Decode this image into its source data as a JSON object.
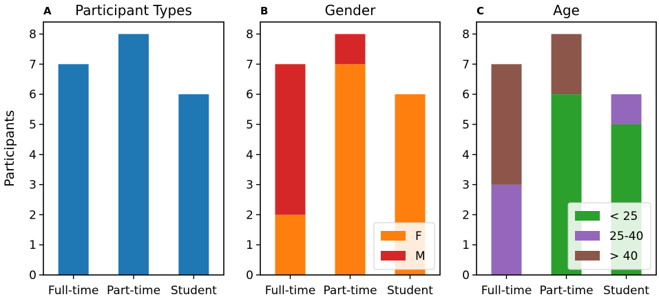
{
  "chart_data": [
    {
      "panel": "A",
      "type": "bar",
      "title": "Participant Types",
      "xlabel": "",
      "ylabel": "Participants",
      "categories": [
        "Full-time",
        "Part-time",
        "Student"
      ],
      "ylim": [
        0,
        8.4
      ],
      "yticks": [
        0,
        1,
        2,
        3,
        4,
        5,
        6,
        7,
        8
      ],
      "stacked": false,
      "series": [
        {
          "name": "Participants",
          "color": "#1f77b4",
          "values": [
            7,
            8,
            6
          ]
        }
      ],
      "legend": null
    },
    {
      "panel": "B",
      "type": "bar",
      "title": "Gender",
      "xlabel": "",
      "ylabel": "",
      "categories": [
        "Full-time",
        "Part-time",
        "Student"
      ],
      "ylim": [
        0,
        8.4
      ],
      "yticks": [
        0,
        1,
        2,
        3,
        4,
        5,
        6,
        7,
        8
      ],
      "stacked": true,
      "series": [
        {
          "name": "F",
          "color": "#ff7f0e",
          "values": [
            2,
            7,
            6
          ]
        },
        {
          "name": "M",
          "color": "#d62728",
          "values": [
            5,
            1,
            0
          ]
        }
      ],
      "legend": "lower right"
    },
    {
      "panel": "C",
      "type": "bar",
      "title": "Age",
      "xlabel": "",
      "ylabel": "",
      "categories": [
        "Full-time",
        "Part-time",
        "Student"
      ],
      "ylim": [
        0,
        8.4
      ],
      "yticks": [
        0,
        1,
        2,
        3,
        4,
        5,
        6,
        7,
        8
      ],
      "stacked": true,
      "series": [
        {
          "name": "< 25",
          "color": "#2ca02c",
          "values": [
            0,
            6,
            5
          ]
        },
        {
          "name": "25-40",
          "color": "#9467bd",
          "values": [
            3,
            0,
            1
          ]
        },
        {
          "name": "> 40",
          "color": "#8c564b",
          "values": [
            4,
            2,
            0
          ]
        }
      ],
      "legend": "lower right"
    }
  ]
}
